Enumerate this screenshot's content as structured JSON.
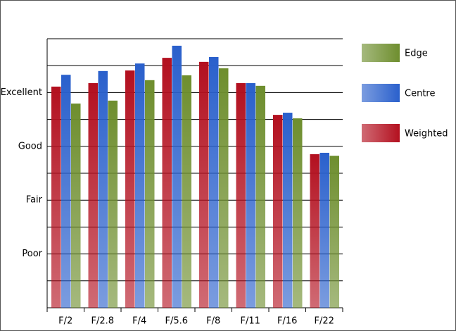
{
  "chart_data": {
    "type": "bar",
    "categories": [
      "F/2",
      "F/2.8",
      "F/4",
      "F/5.6",
      "F/8",
      "F/11",
      "F/16",
      "F/22"
    ],
    "series": [
      {
        "name": "Weighted",
        "color": "#b3101f",
        "values": [
          8.22,
          8.35,
          8.82,
          9.29,
          9.14,
          8.35,
          7.17,
          5.71
        ]
      },
      {
        "name": "Centre",
        "color": "#2a60cc",
        "values": [
          8.66,
          8.8,
          9.08,
          9.74,
          9.32,
          8.35,
          7.25,
          5.76
        ]
      },
      {
        "name": "Edge",
        "color": "#6e8e2e",
        "values": [
          7.59,
          7.7,
          8.46,
          8.64,
          8.9,
          8.25,
          7.04,
          5.65
        ]
      }
    ],
    "ylim": [
      0,
      10
    ],
    "yticks": [
      {
        "value": 2,
        "label": "Poor"
      },
      {
        "value": 4,
        "label": "Fair"
      },
      {
        "value": 6,
        "label": "Good"
      },
      {
        "value": 8,
        "label": "Excellent"
      }
    ],
    "ygrid": [
      1,
      2,
      3,
      4,
      5,
      6,
      7,
      8,
      9,
      10
    ],
    "legend": "right"
  }
}
